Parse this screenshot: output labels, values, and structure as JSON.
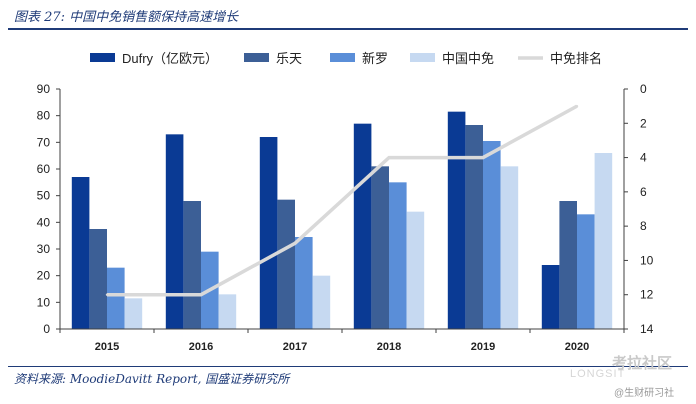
{
  "figure": {
    "title": "图表 27:  中国中免销售额保持高速增长",
    "source": "资料来源:  MoodieDavitt Report,  国盛证券研究所",
    "watermark_cn": "考拉社区",
    "watermark_en": "LONGSIT",
    "watermark_sub": "@生财研习社"
  },
  "chart_data": {
    "type": "bar",
    "title": "中国中免销售额保持高速增长",
    "categories": [
      "2015",
      "2016",
      "2017",
      "2018",
      "2019",
      "2020"
    ],
    "series": [
      {
        "name": "Dufry（亿欧元）",
        "type": "bar",
        "axis": "left",
        "color": "#0a3a94",
        "values": [
          57,
          73,
          72,
          77,
          81.5,
          24
        ]
      },
      {
        "name": "乐天",
        "type": "bar",
        "axis": "left",
        "color": "#3c5f96",
        "values": [
          37.5,
          48,
          48.5,
          61,
          76.5,
          48
        ]
      },
      {
        "name": "新罗",
        "type": "bar",
        "axis": "left",
        "color": "#5a8ed8",
        "values": [
          23,
          29,
          34.5,
          55,
          70.5,
          43
        ]
      },
      {
        "name": "中国中免",
        "type": "bar",
        "axis": "left",
        "color": "#c6d9f1",
        "values": [
          11.5,
          13,
          20,
          44,
          61,
          66
        ]
      },
      {
        "name": "中免排名",
        "type": "line",
        "axis": "right",
        "color": "#d9d9d9",
        "values": [
          12,
          12,
          9,
          4,
          4,
          1
        ]
      }
    ],
    "y_left": {
      "min": 0,
      "max": 90,
      "ticks": [
        "0",
        "10",
        "20",
        "30",
        "40",
        "50",
        "60",
        "70",
        "80",
        "90"
      ]
    },
    "y_right": {
      "min": 0,
      "max": 14,
      "inverted": true,
      "ticks": [
        "0",
        "2",
        "4",
        "6",
        "8",
        "10",
        "12",
        "14"
      ]
    },
    "legend": {
      "position": "top"
    },
    "grid": false
  }
}
